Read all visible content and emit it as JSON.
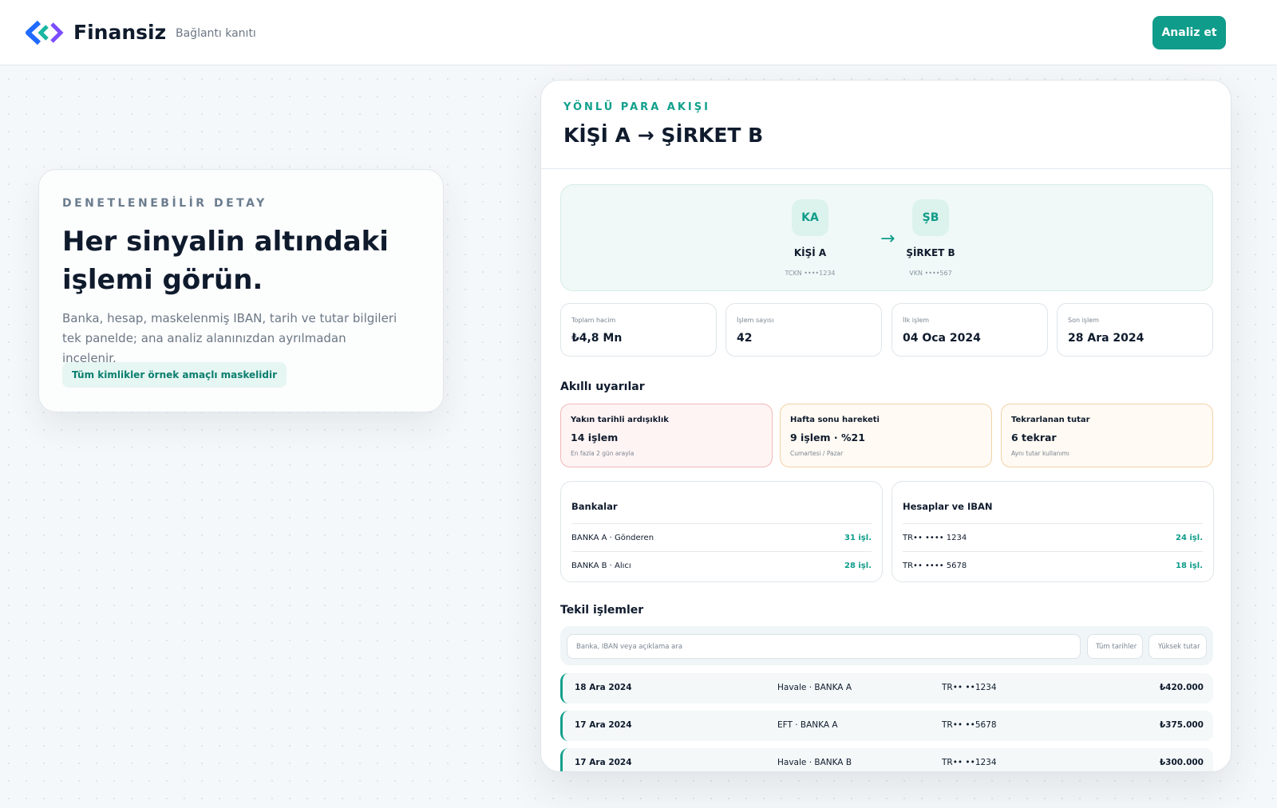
{
  "header": {
    "brand": "Finansiz",
    "subtitle": "Bağlantı kanıtı",
    "button": "Analiz et"
  },
  "intro": {
    "eyebrow": "DENETLENEBİLİR DETAY",
    "title": "Her sinyalin altındaki işlemi görün.",
    "text": "Banka, hesap, maskelenmiş IBAN, tarih ve tutar bilgileri tek panelde; ana analiz alanınızdan ayrılmadan incelenir.",
    "badge": "Tüm kimlikler örnek amaçlı maskelidir"
  },
  "panel": {
    "eyebrow": "YÖNLÜ PARA AKIŞI",
    "title": "KİŞİ A → ŞİRKET B",
    "flow": {
      "from": {
        "initials": "KA",
        "name": "KİŞİ A",
        "id": "TCKN ••••1234"
      },
      "arrow": "→",
      "to": {
        "initials": "ŞB",
        "name": "ŞİRKET B",
        "id": "VKN ••••567"
      }
    },
    "stats": [
      {
        "label": "Toplam hacim",
        "value": "₺4,8 Mn"
      },
      {
        "label": "İşlem sayısı",
        "value": "42"
      },
      {
        "label": "İlk işlem",
        "value": "04 Oca 2024"
      },
      {
        "label": "Son işlem",
        "value": "28 Ara 2024"
      }
    ],
    "alerts_title": "Akıllı uyarılar",
    "alerts": [
      {
        "title": "Yakın tarihli ardışıklık",
        "value": "14 işlem",
        "note": "En fazla 2 gün arayla"
      },
      {
        "title": "Hafta sonu hareketi",
        "value": "9 işlem · %21",
        "note": "Cumartesi / Pazar"
      },
      {
        "title": "Tekrarlanan tutar",
        "value": "6 tekrar",
        "note": "Aynı tutar kullanımı"
      }
    ],
    "banks": {
      "title": "Bankalar",
      "rows": [
        {
          "label": "BANKA A · Gönderen",
          "count": "31 işl."
        },
        {
          "label": "BANKA B · Alıcı",
          "count": "28 işl."
        }
      ]
    },
    "accounts": {
      "title": "Hesaplar ve IBAN",
      "rows": [
        {
          "label": "TR•• •••• 1234",
          "count": "24 işl."
        },
        {
          "label": "TR•• •••• 5678",
          "count": "18 işl."
        }
      ]
    },
    "transactions": {
      "title": "Tekil işlemler",
      "search": "Banka, IBAN veya açıklama ara",
      "filters": [
        "Tüm tarihler",
        "Yüksek tutar"
      ],
      "rows": [
        [
          "18 Ara 2024",
          "Havale · BANKA A",
          "TR•• ••1234",
          "₺420.000"
        ],
        [
          "17 Ara 2024",
          "EFT · BANKA A",
          "TR•• ••5678",
          "₺375.000"
        ],
        [
          "17 Ara 2024",
          "Havale · BANKA B",
          "TR•• ••1234",
          "₺300.000"
        ]
      ]
    }
  }
}
